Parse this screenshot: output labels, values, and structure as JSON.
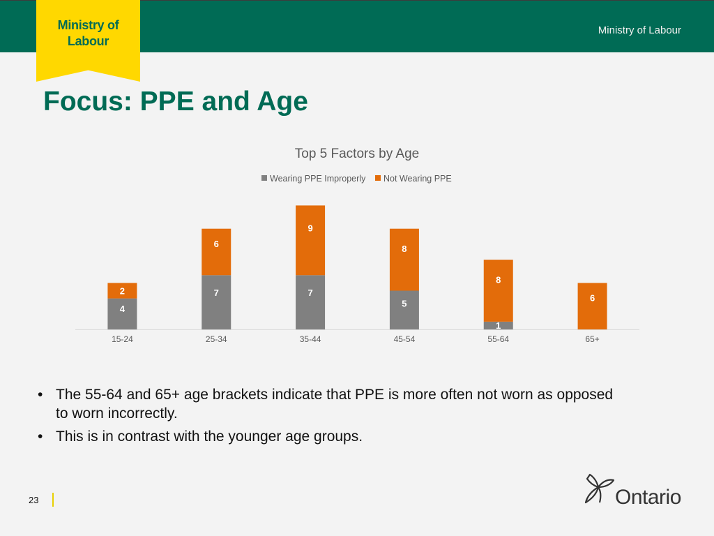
{
  "header": {
    "ribbon_line1": "Ministry of",
    "ribbon_line2": "Labour",
    "right_title": "Ministry of Labour"
  },
  "slide": {
    "title": "Focus: PPE and Age",
    "bullets": [
      "The 55-64 and 65+ age brackets indicate that PPE is more often not worn as opposed to worn incorrectly.",
      "This is in contrast with the younger age groups."
    ],
    "page_number": "23"
  },
  "footer": {
    "logo_text": "Ontario"
  },
  "colors": {
    "brand_green": "#006b55",
    "ribbon_yellow": "#ffd800",
    "series_gray": "#808080",
    "series_orange": "#e36c0a"
  },
  "chart_data": {
    "type": "bar",
    "stacked": true,
    "title": "Top 5 Factors by Age",
    "categories": [
      "15-24",
      "25-34",
      "35-44",
      "45-54",
      "55-64",
      "65+"
    ],
    "series": [
      {
        "name": "Wearing PPE Improperly",
        "values": [
          4,
          7,
          7,
          5,
          1,
          null
        ]
      },
      {
        "name": "Not Wearing PPE",
        "values": [
          2,
          6,
          9,
          8,
          8,
          6
        ]
      }
    ],
    "xlabel": "",
    "ylabel": "",
    "ylim": [
      0,
      16
    ],
    "legend": "top",
    "grid": false,
    "data_labels": true
  }
}
